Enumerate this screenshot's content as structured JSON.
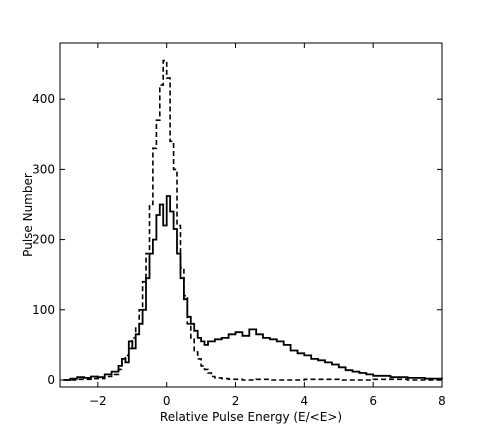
{
  "chart_data": {
    "type": "line",
    "xlabel": "Relative Pulse Energy (E/<E>)",
    "ylabel": "Pulse Number",
    "xlim": [
      -3.1,
      8.0
    ],
    "ylim": [
      -10,
      480
    ],
    "xticks": [
      -2,
      0,
      2,
      4,
      6,
      8
    ],
    "xtick_labels": [
      "−2",
      "0",
      "2",
      "4",
      "6",
      "8"
    ],
    "yticks": [
      0,
      100,
      200,
      300,
      400
    ],
    "ytick_labels": [
      "0",
      "100",
      "200",
      "300",
      "400"
    ],
    "grid": false,
    "legend": false,
    "series": [
      {
        "style": "solid",
        "color": "#000000",
        "x": [
          -3.0,
          -2.8,
          -2.6,
          -2.4,
          -2.2,
          -2.0,
          -1.8,
          -1.6,
          -1.4,
          -1.3,
          -1.2,
          -1.1,
          -1.0,
          -0.9,
          -0.8,
          -0.7,
          -0.6,
          -0.5,
          -0.4,
          -0.3,
          -0.2,
          -0.1,
          0.0,
          0.1,
          0.2,
          0.3,
          0.4,
          0.5,
          0.6,
          0.7,
          0.8,
          0.9,
          1.0,
          1.1,
          1.2,
          1.4,
          1.6,
          1.8,
          2.0,
          2.2,
          2.4,
          2.6,
          2.8,
          3.0,
          3.2,
          3.4,
          3.6,
          3.8,
          4.0,
          4.2,
          4.4,
          4.6,
          4.8,
          5.0,
          5.2,
          5.4,
          5.6,
          5.8,
          6.0,
          6.5,
          7.0,
          7.5,
          8.0
        ],
        "values": [
          0,
          2,
          4,
          3,
          5,
          4,
          8,
          12,
          20,
          30,
          25,
          55,
          45,
          65,
          80,
          100,
          145,
          180,
          200,
          235,
          250,
          220,
          262,
          240,
          215,
          180,
          145,
          115,
          90,
          80,
          70,
          60,
          55,
          50,
          55,
          58,
          60,
          65,
          68,
          63,
          72,
          65,
          60,
          58,
          55,
          50,
          42,
          38,
          35,
          30,
          28,
          25,
          22,
          18,
          14,
          12,
          10,
          8,
          6,
          4,
          3,
          2,
          1
        ]
      },
      {
        "style": "dashed",
        "color": "#000000",
        "x": [
          -3.0,
          -2.6,
          -2.2,
          -1.8,
          -1.6,
          -1.4,
          -1.3,
          -1.2,
          -1.1,
          -1.0,
          -0.9,
          -0.8,
          -0.7,
          -0.6,
          -0.5,
          -0.4,
          -0.3,
          -0.2,
          -0.1,
          0.0,
          0.1,
          0.2,
          0.3,
          0.4,
          0.5,
          0.6,
          0.7,
          0.8,
          0.9,
          1.0,
          1.1,
          1.2,
          1.3,
          1.4,
          1.6,
          1.8,
          2.2,
          2.6,
          3.0,
          4.0,
          5.0,
          6.0,
          7.0,
          8.0
        ],
        "values": [
          0,
          1,
          2,
          5,
          8,
          15,
          25,
          35,
          45,
          60,
          75,
          100,
          140,
          180,
          250,
          330,
          370,
          420,
          455,
          430,
          340,
          300,
          220,
          160,
          120,
          80,
          60,
          40,
          30,
          20,
          15,
          10,
          5,
          3,
          2,
          1,
          0,
          1,
          0,
          1,
          0,
          1,
          0,
          0
        ]
      }
    ]
  }
}
